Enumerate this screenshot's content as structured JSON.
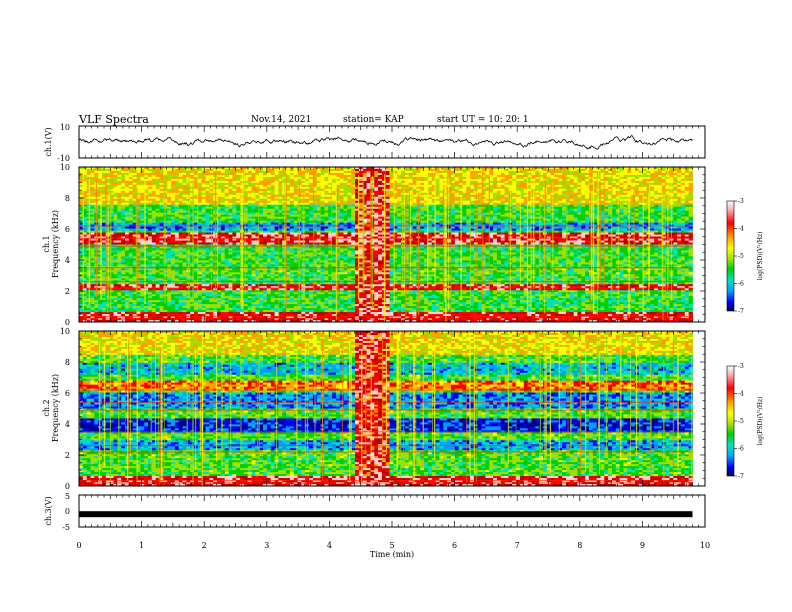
{
  "header": {
    "title": "VLF Spectra",
    "date": "Nov.14, 2021",
    "station": "station= KAP",
    "start": "start  UT =   10: 20: 1"
  },
  "colorbar": {
    "label": "log(PSD)(V²/Hz)",
    "ticks": [
      "-3",
      "-4",
      "-5",
      "-6",
      "-7"
    ]
  },
  "chart_data": [
    {
      "type": "line",
      "panel": "ch.1 waveform",
      "ylabel": "ch.1(V)",
      "ylim": [
        -10,
        10
      ],
      "yticks": [
        "10",
        "-10"
      ],
      "x_range": [
        0,
        9.8
      ],
      "description_values": {
        "mean": 0.6,
        "amplitude": 4
      }
    },
    {
      "type": "heatmap",
      "panel": "ch.1 spectrogram",
      "ylabel": "ch.1 Frequency (kHz)",
      "ylim": [
        0,
        10
      ],
      "yticks": [
        "0",
        "2",
        "4",
        "6",
        "8",
        "10"
      ],
      "x_range": [
        0,
        9.8
      ],
      "log_psd_range": [
        -7,
        -3
      ],
      "burst": {
        "start_min": 4.4,
        "end_min": 4.95
      }
    },
    {
      "type": "heatmap",
      "panel": "ch.2 spectrogram",
      "ylabel": "ch.2 Frequency (kHz)",
      "ylim": [
        0,
        10
      ],
      "yticks": [
        "0",
        "2",
        "4",
        "6",
        "8",
        "10"
      ],
      "x_range": [
        0,
        9.8
      ],
      "log_psd_range": [
        -7,
        -3
      ],
      "burst": {
        "start_min": 4.4,
        "end_min": 4.95
      }
    },
    {
      "type": "line",
      "panel": "ch.3 waveform",
      "ylabel": "ch.3(V)",
      "ylim": [
        -5,
        5
      ],
      "yticks": [
        "5",
        "0",
        "-5"
      ],
      "x_range": [
        0,
        9.8
      ],
      "value": -1
    }
  ],
  "xaxis": {
    "label": "Time  (min)",
    "range": [
      0,
      10
    ],
    "ticks": [
      "0",
      "1",
      "2",
      "3",
      "4",
      "5",
      "6",
      "7",
      "8",
      "9",
      "10"
    ]
  },
  "colors": {
    "scale": [
      "#000080",
      "#0000ff",
      "#00a0ff",
      "#00e0c0",
      "#00d000",
      "#a0e000",
      "#ffff00",
      "#ffa000",
      "#ff0000",
      "#c00000",
      "#ffd0d0",
      "#ffffff"
    ]
  }
}
